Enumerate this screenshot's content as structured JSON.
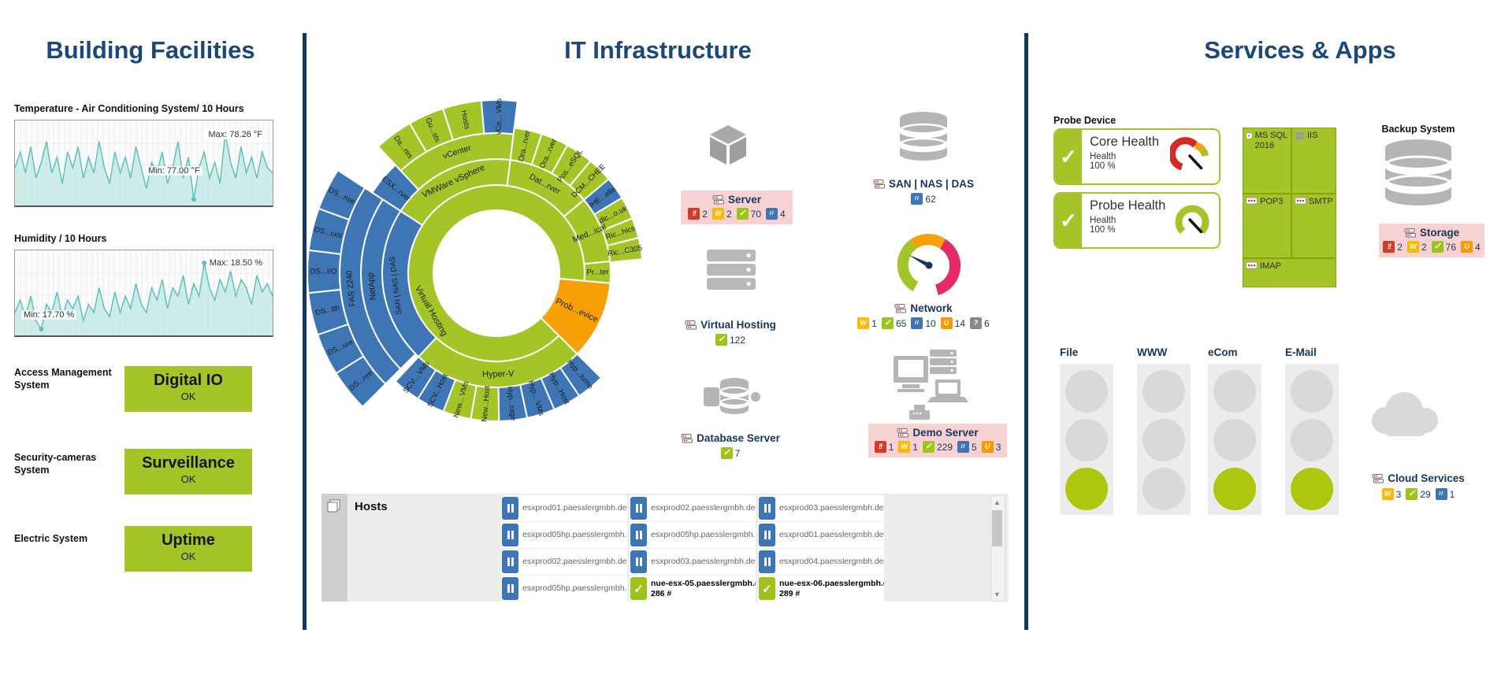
{
  "colors": {
    "navy_title": "#1b4779",
    "navy": "#17365d",
    "divider": "#17365d",
    "green": "#a4c527",
    "blue": "#3e76b5",
    "orange": "#f8a008",
    "alarm_bg": "#f8d2d2",
    "badge_error": "#d43b2a",
    "badge_warning": "#fbb900",
    "badge_ok": "#9cc41c",
    "badge_paused": "#3e76b5",
    "badge_unusual": "#f59b00",
    "badge_unknown": "#8a8a8a",
    "chart_line": "#5ec2bc",
    "chart_fill": "#c2e7e4",
    "icon_gray": "#b5b5b5",
    "light_on": "#aec70e",
    "light_off": "#d9d9d9",
    "gauge_pink": "#e62a63",
    "gauge_red": "#d42a23"
  },
  "left": {
    "title": "Building Facilities",
    "charts": [
      {
        "label": "Temperature - Air Conditioning System/ 10 Hours",
        "max_label": "Max: 78.26 °F",
        "min_label": "Min: 77.00 °F"
      },
      {
        "label": "Humidity / 10 Hours",
        "max_label": "Max: 18.50 %",
        "min_label": "Min: 17.70 %"
      }
    ],
    "status_rows": [
      {
        "label": "Access Management System",
        "title": "Digital IO",
        "state": "OK"
      },
      {
        "label": "Security-cameras System",
        "title": "Surveillance",
        "state": "OK"
      },
      {
        "label": "Electric System",
        "title": "Uptime",
        "state": "OK"
      }
    ]
  },
  "middle": {
    "title": "IT Infrastructure",
    "sunburst": {
      "segments": [
        {
          "label": "Virtual Hosting",
          "color": "green",
          "r0": 80,
          "r1": 112,
          "a0": 135,
          "a1": 455,
          "orient": "tangent",
          "la": 240,
          "fs": 11
        },
        {
          "label": "Prob...evice",
          "color": "orange",
          "r0": 80,
          "r1": 145,
          "a0": 95,
          "a1": 135,
          "orient": "radial",
          "fs": 11
        },
        {
          "label": "VMWare vSphere",
          "color": "green",
          "r0": 112,
          "r1": 145,
          "a0": 303,
          "a1": 367,
          "orient": "tangent",
          "fs": 11
        },
        {
          "label": "Dat...rver",
          "color": "green",
          "r0": 112,
          "r1": 145,
          "a0": 7,
          "a1": 50,
          "orient": "tangent",
          "fs": 10.5
        },
        {
          "label": "Med...ical",
          "color": "green",
          "r0": 112,
          "r1": 145,
          "a0": 50,
          "a1": 84,
          "orient": "radial",
          "fs": 10.5
        },
        {
          "label": "Pr...ter",
          "color": "green",
          "r0": 112,
          "r1": 145,
          "a0": 84,
          "a1": 95,
          "orient": "radial"
        },
        {
          "label": "Hyper-V",
          "color": "green",
          "r0": 112,
          "r1": 145,
          "a0": 135,
          "a1": 223,
          "orient": "tangent",
          "fs": 11
        },
        {
          "label": "SAN | NAS | DAS",
          "color": "blue",
          "r0": 112,
          "r1": 145,
          "a0": 223,
          "a1": 303,
          "orient": "tangent"
        },
        {
          "label": "vCenter",
          "color": "green",
          "r0": 145,
          "r1": 178,
          "a0": 317,
          "a1": 367,
          "orient": "tangent",
          "fs": 10.5
        },
        {
          "label": "ESX...rver",
          "color": "blue",
          "r0": 145,
          "r1": 188,
          "a0": 303,
          "a1": 317,
          "orient": "radial"
        },
        {
          "label": "Da...res",
          "color": "green",
          "r0": 178,
          "r1": 220,
          "a0": 317,
          "a1": 330,
          "orient": "radial"
        },
        {
          "label": "Gu...sts",
          "color": "green",
          "r0": 178,
          "r1": 220,
          "a0": 330,
          "a1": 342,
          "orient": "radial"
        },
        {
          "label": "Hosts",
          "color": "green",
          "r0": 178,
          "r1": 220,
          "a0": 342,
          "a1": 355,
          "orient": "radial"
        },
        {
          "label": "vCe... VMs",
          "color": "blue",
          "r0": 178,
          "r1": 220,
          "a0": 355,
          "a1": 367,
          "orient": "radial"
        },
        {
          "label": "Ora...rver",
          "color": "green",
          "r0": 145,
          "r1": 186,
          "a0": 7,
          "a1": 18,
          "orient": "radial"
        },
        {
          "label": "Ora...rver",
          "color": "green",
          "r0": 145,
          "r1": 186,
          "a0": 18,
          "a1": 29,
          "orient": "radial"
        },
        {
          "label": "Pos...eSQL",
          "color": "green",
          "r0": 145,
          "r1": 186,
          "a0": 29,
          "a1": 40,
          "orient": "radial"
        },
        {
          "label": "DCM...CHEE",
          "color": "green",
          "r0": 145,
          "r1": 186,
          "a0": 40,
          "a1": 50,
          "orient": "radial"
        },
        {
          "label": "IHE...elle",
          "color": "blue",
          "r0": 145,
          "r1": 186,
          "a0": 50,
          "a1": 59,
          "orient": "radial"
        },
        {
          "label": "dic...o.uk",
          "color": "green",
          "r0": 145,
          "r1": 186,
          "a0": 59,
          "a1": 68,
          "orient": "radial"
        },
        {
          "label": "Ric...hics",
          "color": "green",
          "r0": 145,
          "r1": 186,
          "a0": 68,
          "a1": 76,
          "orient": "radial"
        },
        {
          "label": "Ric...C305",
          "color": "green",
          "r0": 145,
          "r1": 186,
          "a0": 76,
          "a1": 84.5,
          "orient": "radial"
        },
        {
          "label": "Hyp...lume",
          "color": "blue",
          "r0": 145,
          "r1": 188,
          "a0": 135,
          "a1": 146,
          "orient": "radial"
        },
        {
          "label": "Hyp...Host",
          "color": "blue",
          "r0": 145,
          "r1": 188,
          "a0": 146,
          "a1": 157,
          "orient": "radial"
        },
        {
          "label": "Hyp... VMs",
          "color": "blue",
          "r0": 145,
          "r1": 188,
          "a0": 157,
          "a1": 168,
          "orient": "radial"
        },
        {
          "label": "Hyp...rage",
          "color": "blue",
          "r0": 145,
          "r1": 188,
          "a0": 168,
          "a1": 179,
          "orient": "radial"
        },
        {
          "label": "New...Host",
          "color": "green",
          "r0": 145,
          "r1": 188,
          "a0": 179,
          "a1": 190,
          "orient": "radial"
        },
        {
          "label": "New... VMs",
          "color": "green",
          "r0": 145,
          "r1": 188,
          "a0": 190,
          "a1": 201,
          "orient": "radial"
        },
        {
          "label": "SCV...Host",
          "color": "blue",
          "r0": 145,
          "r1": 188,
          "a0": 201,
          "a1": 212,
          "orient": "radial"
        },
        {
          "label": "SCV... VMs",
          "color": "blue",
          "r0": 145,
          "r1": 188,
          "a0": 212,
          "a1": 223,
          "orient": "radial"
        },
        {
          "label": "NetApp",
          "color": "blue",
          "r0": 145,
          "r1": 172,
          "a0": 225,
          "a1": 303,
          "orient": "tangent",
          "fs": 10.5
        },
        {
          "label": "FAS 2240",
          "color": "blue",
          "r0": 172,
          "r1": 199,
          "a0": 225,
          "a1": 303,
          "orient": "tangent",
          "fs": 10.5
        },
        {
          "label": "DS...ree",
          "color": "blue",
          "r0": 199,
          "r1": 240,
          "a0": 225,
          "a1": 238,
          "orient": "radial"
        },
        {
          "label": "DS...ure",
          "color": "blue",
          "r0": 199,
          "r1": 240,
          "a0": 238,
          "a1": 251,
          "orient": "radial"
        },
        {
          "label": "DS...lth",
          "color": "blue",
          "r0": 199,
          "r1": 240,
          "a0": 251,
          "a1": 264,
          "orient": "radial"
        },
        {
          "label": "DS...I/O",
          "color": "blue",
          "r0": 199,
          "r1": 240,
          "a0": 264,
          "a1": 277,
          "orient": "radial"
        },
        {
          "label": "DS...ces",
          "color": "blue",
          "r0": 199,
          "r1": 240,
          "a0": 277,
          "a1": 290,
          "orient": "radial"
        },
        {
          "label": "DS...nse",
          "color": "blue",
          "r0": 199,
          "r1": 240,
          "a0": 290,
          "a1": 303,
          "orient": "radial"
        }
      ]
    },
    "devices": [
      {
        "name": "Server",
        "alarm": true,
        "badges": [
          {
            "type": "error",
            "count": "2"
          },
          {
            "type": "warning",
            "count": "2"
          },
          {
            "type": "ok",
            "count": "70"
          },
          {
            "type": "paused",
            "count": "4"
          }
        ]
      },
      {
        "name": "Virtual Hosting",
        "badges": [
          {
            "type": "ok",
            "count": "122"
          }
        ]
      },
      {
        "name": "Database Server",
        "badges": [
          {
            "type": "ok",
            "count": "7"
          }
        ]
      },
      {
        "name": "SAN | NAS | DAS",
        "badges": [
          {
            "type": "paused",
            "count": "62"
          }
        ]
      },
      {
        "name": "Network",
        "badges": [
          {
            "type": "warning",
            "count": "1"
          },
          {
            "type": "ok",
            "count": "65"
          },
          {
            "type": "paused",
            "count": "10"
          },
          {
            "type": "unusual",
            "count": "14"
          },
          {
            "type": "unknown",
            "count": "6"
          }
        ]
      },
      {
        "name": "Demo Server",
        "alarm": true,
        "badges": [
          {
            "type": "error",
            "count": "1"
          },
          {
            "type": "warning",
            "count": "1"
          },
          {
            "type": "ok",
            "count": "229"
          },
          {
            "type": "paused",
            "count": "5"
          },
          {
            "type": "unusual",
            "count": "3"
          }
        ]
      }
    ],
    "hosts": {
      "title": "Hosts",
      "rows": [
        [
          {
            "state": "paused",
            "text": "esxprod01.paesslergmbh.de [..."
          },
          {
            "state": "paused",
            "text": "esxprod02.paesslergmbh.de [..."
          },
          {
            "state": "paused",
            "text": "esxprod03.paesslergmbh.de [..."
          }
        ],
        [
          {
            "state": "paused",
            "text": "esxprod05hp.paesslergmbh.d..."
          },
          {
            "state": "paused",
            "text": "esxprod05hp.paesslergmbh.d..."
          },
          {
            "state": "paused",
            "text": "esxprod01.paesslergmbh.de [..."
          }
        ],
        [
          {
            "state": "paused",
            "text": "esxprod02.paesslergmbh.de [..."
          },
          {
            "state": "paused",
            "text": "esxprod03.paesslergmbh.de [..."
          },
          {
            "state": "paused",
            "text": "esxprod04.paesslergmbh.de [..."
          }
        ],
        [
          {
            "state": "paused",
            "text": "esxprod05hp.paesslergmbh.d..."
          },
          {
            "state": "ok",
            "text": "nue-esx-05.paesslergmbh.de [...",
            "sub": "286 #"
          },
          {
            "state": "ok",
            "text": "nue-esx-06.paesslergmbh.de [...",
            "sub": "289 #"
          }
        ]
      ]
    }
  },
  "right": {
    "title": "Services & Apps",
    "probe": {
      "label": "Probe Device",
      "cards": [
        {
          "title": "Core Health",
          "metric": "Health",
          "value": "100 %"
        },
        {
          "title": "Probe Health",
          "metric": "Health",
          "value": "100 %"
        }
      ]
    },
    "treemap": {
      "tiles": [
        "MS SQL 2016",
        "IIS",
        "POP3",
        "SMTP",
        "IMAP"
      ]
    },
    "backup": {
      "label": "Backup System",
      "storage": {
        "name": "Storage",
        "alarm": true,
        "badges": [
          {
            "type": "error",
            "count": "2"
          },
          {
            "type": "warning",
            "count": "2"
          },
          {
            "type": "ok",
            "count": "76"
          },
          {
            "type": "unusual",
            "count": "4"
          }
        ]
      }
    },
    "lights": [
      {
        "label": "File",
        "states": [
          "off",
          "off",
          "on"
        ]
      },
      {
        "label": "WWW",
        "states": [
          "off",
          "off",
          "off"
        ]
      },
      {
        "label": "eCom",
        "states": [
          "off",
          "off",
          "on"
        ]
      },
      {
        "label": "E-Mail",
        "states": [
          "off",
          "off",
          "on"
        ]
      }
    ],
    "cloud": {
      "name": "Cloud Services",
      "badges": [
        {
          "type": "warning",
          "count": "3"
        },
        {
          "type": "ok",
          "count": "29"
        },
        {
          "type": "paused",
          "count": "1"
        }
      ]
    }
  },
  "chart_data": [
    {
      "type": "line",
      "title": "Temperature - Air Conditioning System/ 10 Hours",
      "ylabel": "°F",
      "ylim": [
        76.9,
        78.4
      ],
      "max": 78.26,
      "min": 77.0,
      "grid": true,
      "values": [
        77.6,
        77.9,
        77.5,
        78.0,
        77.4,
        77.7,
        78.1,
        77.5,
        77.8,
        77.3,
        77.9,
        77.6,
        78.0,
        77.4,
        77.8,
        77.5,
        78.1,
        77.6,
        77.3,
        77.9,
        77.5,
        77.8,
        77.4,
        78.0,
        77.6,
        77.2,
        77.7,
        77.5,
        77.9,
        77.3,
        77.6,
        78.1,
        77.4,
        77.8,
        77.0,
        77.6,
        77.9,
        77.4,
        77.7,
        77.3,
        78.26,
        77.7,
        77.4,
        78.0,
        77.5,
        77.8,
        77.4,
        77.9,
        77.6,
        77.5
      ]
    },
    {
      "type": "line",
      "title": "Humidity / 10 Hours",
      "ylabel": "%",
      "ylim": [
        17.6,
        18.6
      ],
      "max": 18.5,
      "min": 17.7,
      "grid": true,
      "values": [
        17.9,
        18.05,
        17.85,
        18.1,
        17.8,
        17.7,
        18.0,
        17.9,
        18.15,
        17.85,
        18.05,
        17.95,
        18.1,
        17.8,
        18.0,
        17.9,
        18.2,
        17.95,
        17.85,
        18.15,
        17.9,
        18.1,
        17.95,
        18.25,
        18.0,
        17.9,
        18.2,
        18.05,
        18.3,
        17.95,
        18.2,
        18.1,
        18.35,
        18.0,
        18.25,
        18.1,
        18.5,
        18.2,
        18.05,
        18.3,
        18.15,
        18.4,
        18.1,
        18.3,
        18.2,
        18.0,
        18.35,
        18.15,
        18.25,
        18.1
      ]
    }
  ]
}
